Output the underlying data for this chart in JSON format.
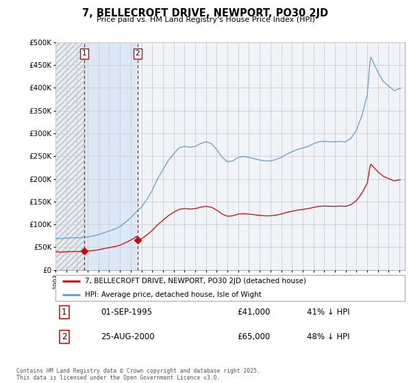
{
  "title": "7, BELLECROFT DRIVE, NEWPORT, PO30 2JD",
  "subtitle": "Price paid vs. HM Land Registry's House Price Index (HPI)",
  "legend_line1": "7, BELLECROFT DRIVE, NEWPORT, PO30 2JD (detached house)",
  "legend_line2": "HPI: Average price, detached house, Isle of Wight",
  "annotation1_date": "01-SEP-1995",
  "annotation1_price": "£41,000",
  "annotation1_hpi": "41% ↓ HPI",
  "annotation1_year": 1995.67,
  "annotation1_value": 41000,
  "annotation2_date": "25-AUG-2000",
  "annotation2_price": "£65,000",
  "annotation2_hpi": "48% ↓ HPI",
  "annotation2_year": 2000.65,
  "annotation2_value": 65000,
  "footer": "Contains HM Land Registry data © Crown copyright and database right 2025.\nThis data is licensed under the Open Government Licence v3.0.",
  "ylim": [
    0,
    500000
  ],
  "ytick_step": 50000,
  "bg_hatch_color": "#c8d0d8",
  "bg_between_color": "#ddeeff",
  "bg_plain_color": "#eef4fa",
  "red_line_color": "#cc0000",
  "hpi_line_color": "#6699cc",
  "grid_color": "#cccccc",
  "vline_color": "#cc0000",
  "xlim_start": 1993.0,
  "xlim_end": 2025.5
}
